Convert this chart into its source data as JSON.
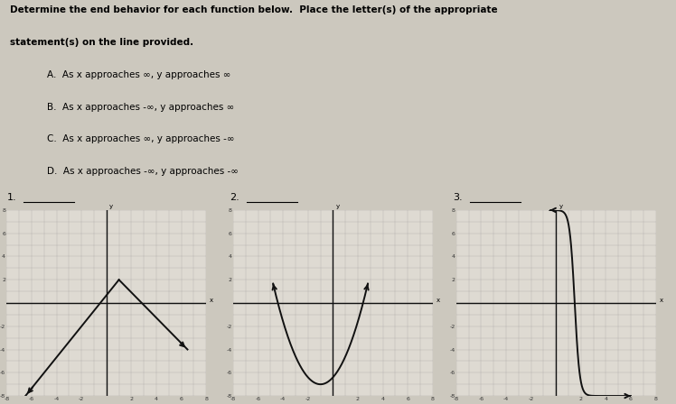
{
  "background_color": "#ccc8be",
  "title_line1": "Determine the end behavior for each function below.  Place the letter(s) of the appropriate",
  "title_line2": "statement(s) on the line provided.",
  "options": [
    "A.  As x approaches ∞, y approaches ∞",
    "B.  As x approaches -∞, y approaches ∞",
    "C.  As x approaches ∞, y approaches -∞",
    "D.  As x approaches -∞, y approaches -∞"
  ],
  "graph_labels": [
    "1.",
    "2.",
    "3."
  ],
  "graph_bg": "#dedad2",
  "grid_color": "#999999",
  "axis_color": "#111111",
  "curve_color": "#111111",
  "axis_range": [
    -8,
    8
  ]
}
